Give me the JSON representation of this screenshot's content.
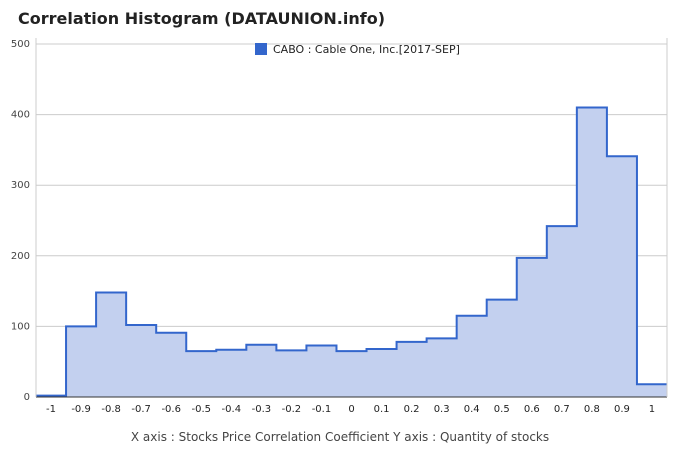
{
  "chart_data": {
    "type": "area",
    "title": "Correlation Histogram (DATAUNION.info)",
    "caption": "X axis : Stocks Price Correlation Coefficient  Y axis : Quantity of stocks",
    "xlabel": "Stocks Price Correlation Coefficient",
    "ylabel": "Quantity of stocks",
    "xlim": [
      -1.05,
      1.05
    ],
    "ylim": [
      0,
      500
    ],
    "x_ticks": [
      -1,
      -0.9,
      -0.8,
      -0.7,
      -0.6,
      -0.5,
      -0.4,
      -0.3,
      -0.2,
      -0.1,
      0,
      0.1,
      0.2,
      0.3,
      0.4,
      0.5,
      0.6,
      0.7,
      0.8,
      0.9,
      1
    ],
    "x_tick_labels": [
      "-1",
      "-0.9",
      "-0.8",
      "-0.7",
      "-0.6",
      "-0.5",
      "-0.4",
      "-0.3",
      "-0.2",
      "-0.1",
      "0",
      "0.1",
      "0.2",
      "0.3",
      "0.4",
      "0.5",
      "0.6",
      "0.7",
      "0.8",
      "0.9",
      "1"
    ],
    "y_ticks": [
      0,
      100,
      200,
      300,
      400,
      500
    ],
    "y_tick_labels": [
      "0",
      "100",
      "200",
      "300",
      "400",
      "500"
    ],
    "grid": true,
    "legend_position": "top-center",
    "series": [
      {
        "name": "CABO : Cable One, Inc.[2017-SEP]",
        "color": "#3366cc",
        "fill": "#c3d0ef",
        "step": true,
        "x": [
          -1,
          -0.9,
          -0.8,
          -0.7,
          -0.6,
          -0.5,
          -0.4,
          -0.3,
          -0.2,
          -0.1,
          0,
          0.1,
          0.2,
          0.3,
          0.4,
          0.5,
          0.6,
          0.7,
          0.8,
          0.9,
          1
        ],
        "values": [
          2,
          100,
          148,
          102,
          91,
          65,
          67,
          74,
          66,
          73,
          65,
          68,
          78,
          83,
          115,
          138,
          197,
          242,
          410,
          341,
          18
        ]
      }
    ]
  }
}
